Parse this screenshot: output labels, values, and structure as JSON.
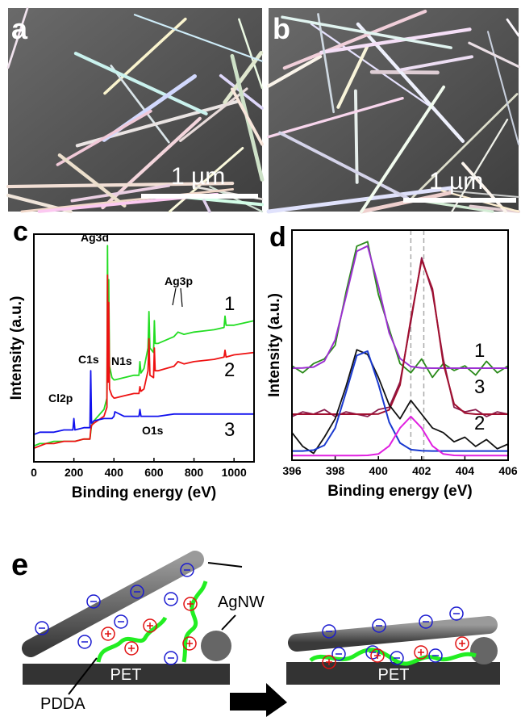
{
  "panels": {
    "a": {
      "label": "a",
      "scale_bar": "1 µm"
    },
    "b": {
      "label": "b",
      "scale_bar": "1 µm"
    }
  },
  "chart_data": [
    {
      "type": "line",
      "label": "c",
      "x_label": "Binding energy (eV)",
      "y_label": "Intensity (a.u.)",
      "xlim": [
        0,
        1100
      ],
      "xticks": [
        0,
        200,
        400,
        600,
        800,
        1000
      ],
      "ylim": [
        0,
        100
      ],
      "annotations": [
        "Ag3d",
        "Ag3p",
        "C1s",
        "N1s",
        "Cl2p",
        "O1s"
      ],
      "x": [
        0,
        30,
        60,
        100,
        150,
        195,
        200,
        205,
        250,
        280,
        284,
        288,
        300,
        350,
        365,
        368,
        371,
        374,
        378,
        390,
        400,
        405,
        450,
        500,
        525,
        530,
        535,
        550,
        570,
        575,
        580,
        598,
        602,
        606,
        620,
        700,
        720,
        750,
        800,
        900,
        950,
        955,
        960,
        1000,
        1100
      ],
      "series": [
        {
          "name": "1",
          "color": "#22dd22",
          "values": [
            7,
            8,
            8,
            9,
            9,
            9,
            9,
            9,
            10,
            10,
            13,
            16,
            18,
            23,
            28,
            95,
            45,
            80,
            42,
            37,
            36,
            36,
            37,
            38,
            38,
            44,
            39,
            41,
            50,
            66,
            50,
            48,
            62,
            52,
            52,
            55,
            57,
            56,
            57,
            58,
            59,
            64,
            60,
            60,
            62
          ]
        },
        {
          "name": "2",
          "color": "#ee1111",
          "values": [
            6,
            7,
            8,
            8,
            9,
            9,
            9,
            9,
            10,
            10,
            14,
            16,
            17,
            20,
            24,
            82,
            35,
            70,
            32,
            29,
            28,
            28,
            29,
            30,
            30,
            33,
            31,
            32,
            40,
            54,
            38,
            37,
            50,
            40,
            40,
            42,
            44,
            43,
            44,
            45,
            46,
            49,
            46,
            47,
            48
          ]
        },
        {
          "name": "3",
          "color": "#1111ee",
          "values": [
            12,
            13,
            13,
            13,
            14,
            14,
            19,
            14,
            15,
            15,
            40,
            17,
            18,
            19,
            19,
            19,
            19,
            19,
            19,
            19,
            20,
            22,
            20,
            20,
            20,
            23,
            20,
            20,
            20,
            20,
            20,
            20,
            20,
            20,
            20,
            21,
            21,
            21,
            21,
            21,
            21,
            21,
            21,
            21,
            21
          ]
        }
      ]
    },
    {
      "type": "line",
      "label": "d",
      "x_label": "Binding energy (eV)",
      "y_label": "Intensity (a.u.)",
      "xlim": [
        396,
        406
      ],
      "xticks": [
        396,
        398,
        400,
        402,
        404,
        406
      ],
      "ylim": [
        0,
        100
      ],
      "vlines": [
        401.5,
        402.1
      ],
      "x": [
        396,
        396.5,
        397,
        397.5,
        398,
        398.5,
        399,
        399.5,
        400,
        400.5,
        401,
        401.5,
        402,
        402.5,
        403,
        403.5,
        404,
        404.5,
        405,
        405.5,
        406
      ],
      "series": [
        {
          "name": "1",
          "color": "#2a8a1a",
          "values": [
            41,
            38,
            42,
            44,
            50,
            73,
            93,
            95,
            72,
            57,
            42,
            38,
            44,
            36,
            42,
            39,
            41,
            37,
            43,
            38,
            41
          ],
          "fits": [
            {
              "color": "#9b30d0",
              "values": [
                40,
                40.1,
                40.5,
                43.1,
                52.3,
                71.1,
                90.8,
                93.1,
                75.6,
                55.3,
                44.2,
                40.7,
                40.1,
                40,
                40,
                40,
                40,
                40,
                40,
                40,
                40
              ]
            }
          ]
        },
        {
          "name": "3",
          "color": "#8a1a4a",
          "values": [
            19,
            21,
            20,
            22,
            19,
            21,
            20,
            19,
            22,
            23,
            34,
            60,
            88,
            73,
            44,
            23,
            21,
            22,
            19,
            21,
            20
          ],
          "fits": [
            {
              "color": "#a01030",
              "values": [
                20,
                20,
                20,
                20,
                20,
                20,
                20,
                20,
                20.1,
                21.9,
                32.7,
                61.3,
                87,
                74.5,
                42.1,
                24.5,
                20.5,
                20,
                20,
                20,
                20
              ]
            }
          ]
        },
        {
          "name": "2",
          "color": "#111111",
          "values": [
            12,
            6,
            3,
            10,
            18,
            32,
            48,
            46,
            36,
            24,
            18,
            26,
            20,
            14,
            12,
            8,
            10,
            6,
            9,
            5,
            7
          ],
          "fits": [
            {
              "color": "#1a3ad0",
              "values": [
                4,
                4,
                4.4,
                6.5,
                14,
                29.5,
                45.5,
                47.4,
                33.1,
                16.5,
                7.5,
                4.6,
                4.1,
                4,
                4,
                4,
                4,
                4,
                4,
                4,
                4
              ]
            },
            {
              "color": "#e020e0",
              "values": [
                2,
                2,
                2,
                2,
                2,
                2,
                2,
                2.1,
                2.7,
                6.2,
                14,
                19,
                14,
                6.2,
                2.7,
                2.1,
                2,
                2,
                2,
                2,
                2
              ]
            }
          ]
        }
      ]
    }
  ],
  "diagram": {
    "label": "e",
    "agnw": "AgNW",
    "pdda": "PDDA",
    "substrate_left": "PET",
    "substrate_right": "PET"
  }
}
